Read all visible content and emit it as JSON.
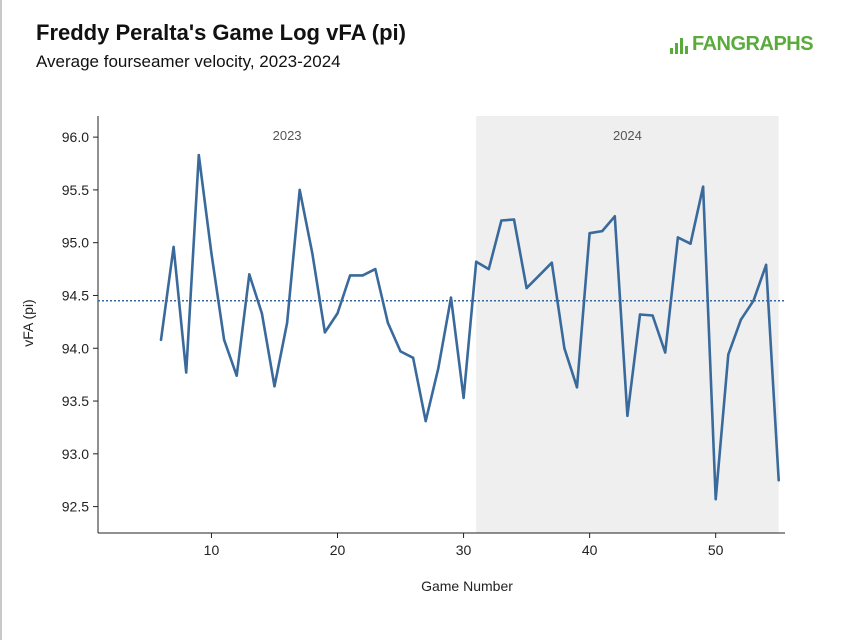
{
  "title": "Freddy Peralta's Game Log vFA (pi)",
  "subtitle": "Average fourseamer velocity, 2023-2024",
  "logo_text": "FANGRAPHS",
  "chart_data": {
    "type": "line",
    "xlabel": "Game Number",
    "ylabel": "vFA (pi)",
    "xlim": [
      1,
      55.5
    ],
    "ylim": [
      92.25,
      96.2
    ],
    "x_ticks": [
      10,
      20,
      30,
      40,
      50
    ],
    "y_ticks": [
      92.5,
      93.0,
      93.5,
      94.0,
      94.5,
      95.0,
      95.5,
      96.0
    ],
    "y_tick_labels": [
      "92.5",
      "93.0",
      "93.5",
      "94.0",
      "94.5",
      "95.0",
      "95.5",
      "96.0"
    ],
    "reference_line": {
      "y": 94.45,
      "style": "dotted"
    },
    "seasons": [
      {
        "label": "2023",
        "x_start": 1,
        "x_end": 31,
        "shaded": false
      },
      {
        "label": "2024",
        "x_start": 31,
        "x_end": 55,
        "shaded": true
      }
    ],
    "series": [
      {
        "color": "#3a6a9b",
        "x": [
          6,
          7,
          8,
          9,
          10,
          11,
          12,
          13,
          14,
          15,
          16,
          17,
          18,
          19,
          20,
          21,
          22,
          23,
          24,
          25,
          26,
          27,
          28,
          29,
          30,
          31,
          32,
          33,
          34,
          35,
          36,
          37,
          38,
          39,
          40,
          41,
          42,
          43,
          44,
          45,
          46,
          47,
          48,
          49,
          50,
          51,
          52,
          53,
          54,
          55
        ],
        "y": [
          94.08,
          94.96,
          93.77,
          95.83,
          94.9,
          94.08,
          93.74,
          94.7,
          94.33,
          93.64,
          94.24,
          95.5,
          94.9,
          94.15,
          94.33,
          94.69,
          94.69,
          94.75,
          94.24,
          93.97,
          93.91,
          93.31,
          93.81,
          94.48,
          93.53,
          94.82,
          94.75,
          95.21,
          95.22,
          94.57,
          94.69,
          94.81,
          94.0,
          93.63,
          95.09,
          95.11,
          95.25,
          93.36,
          94.32,
          94.31,
          93.96,
          95.05,
          94.99,
          95.53,
          92.57,
          93.94,
          94.27,
          94.45,
          94.79,
          92.75
        ]
      }
    ]
  }
}
